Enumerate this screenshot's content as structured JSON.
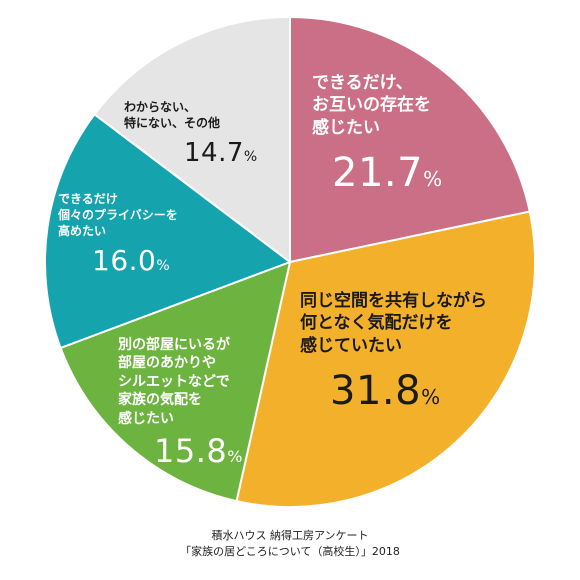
{
  "chart_data": {
    "type": "pie",
    "slices": [
      {
        "label": "できるだけ、\nお互いの存在を\n感じたい",
        "value": 21.7,
        "value_text": "21.7",
        "unit": "%",
        "color": "#CB6F86"
      },
      {
        "label": "同じ空間を共有しながら\n何となく気配だけを\n感じていたい",
        "value": 31.8,
        "value_text": "31.8",
        "unit": "%",
        "color": "#F3B12B"
      },
      {
        "label": "別の部屋にいるが\n部屋のあかりや\nシルエットなどで\n家族の気配を\n感じたい",
        "value": 15.8,
        "value_text": "15.8",
        "unit": "%",
        "color": "#6DB33F"
      },
      {
        "label": "できるだけ\n個々のプライバシーを\n高めたい",
        "value": 16.0,
        "value_text": "16.0",
        "unit": "%",
        "color": "#15A3AE"
      },
      {
        "label": "わからない、\n特にない、その他",
        "value": 14.7,
        "value_text": "14.7",
        "unit": "%",
        "color": "#E5E5E5"
      }
    ],
    "start": "12 o'clock",
    "direction": "clockwise"
  },
  "source": {
    "line1": "積水ハウス 納得工房アンケート",
    "line2": "「家族の居どころについて（高校生）」2018"
  }
}
